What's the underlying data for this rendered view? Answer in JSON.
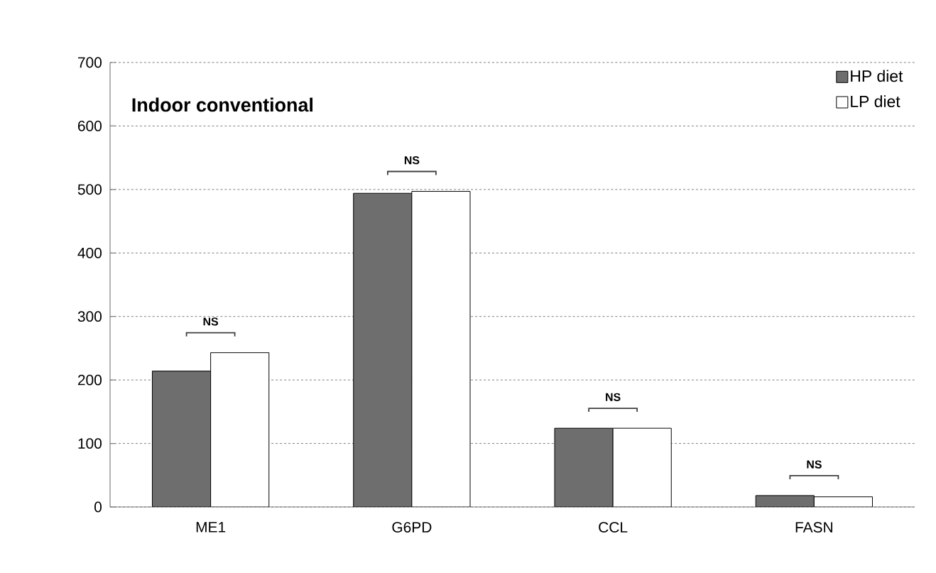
{
  "chart_data": {
    "type": "bar",
    "title": "Indoor  conventional",
    "categories": [
      "ME1",
      "G6PD",
      "CCL",
      "FASN"
    ],
    "series": [
      {
        "name": "HP diet",
        "color": "#6e6e6e",
        "values": [
          214,
          494,
          124,
          18
        ]
      },
      {
        "name": "LP diet",
        "color": "#ffffff",
        "values": [
          243,
          497,
          124,
          16
        ]
      }
    ],
    "ylim": [
      0,
      700
    ],
    "yticks": [
      0,
      100,
      200,
      300,
      400,
      500,
      600,
      700
    ],
    "grid": "y",
    "legend": "top right",
    "annotations": [
      "NS",
      "NS",
      "NS",
      "NS"
    ]
  }
}
